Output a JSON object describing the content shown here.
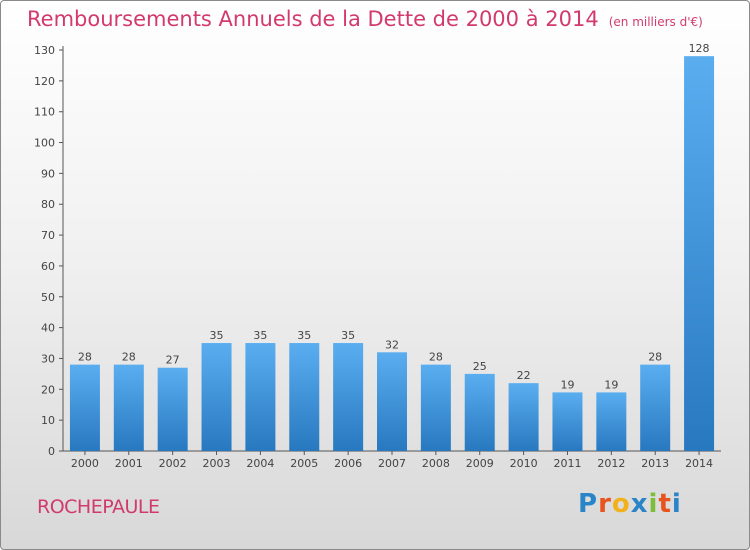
{
  "chart_data": {
    "type": "bar",
    "title": "Remboursements Annuels de la Dette de 2000 à 2014",
    "subtitle": "(en milliers d'€)",
    "xlabel": "",
    "ylabel": "",
    "categories": [
      "2000",
      "2001",
      "2002",
      "2003",
      "2004",
      "2005",
      "2006",
      "2007",
      "2008",
      "2009",
      "2010",
      "2011",
      "2012",
      "2013",
      "2014"
    ],
    "values": [
      28,
      28,
      27,
      35,
      35,
      35,
      35,
      32,
      28,
      25,
      22,
      19,
      19,
      28,
      128
    ],
    "ylim": [
      0,
      130
    ],
    "yticks": [
      0,
      10,
      20,
      30,
      40,
      50,
      60,
      70,
      80,
      90,
      100,
      110,
      120,
      130
    ],
    "grid": false,
    "legend": "none"
  },
  "footer": {
    "commune": "ROCHEPAULE",
    "logo_text": "Proxiti"
  },
  "colors": {
    "title": "#d23a6e",
    "bar_light": "#5aaef0",
    "bar_dark": "#2878c0"
  }
}
